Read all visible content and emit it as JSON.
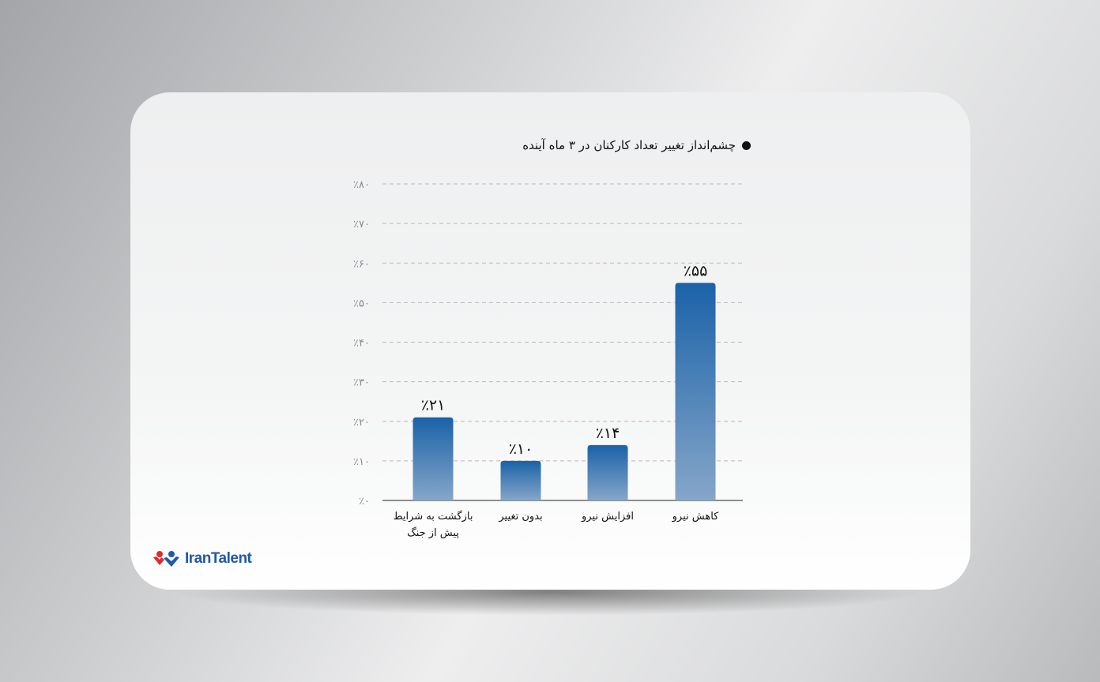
{
  "chart_data": {
    "type": "bar",
    "title": "چشم‌انداز تغییر تعداد کارکنان در ۳ ماه آینده",
    "categories": [
      [
        "بازگشت به شرایط",
        "پیش از جنگ"
      ],
      [
        "بدون تغییر"
      ],
      [
        "افزایش نیرو"
      ],
      [
        "کاهش نیرو"
      ]
    ],
    "values": [
      21,
      10,
      14,
      55
    ],
    "value_labels": [
      "٪۲۱",
      "٪۱۰",
      "٪۱۴",
      "٪۵۵"
    ],
    "ylim": [
      0,
      80
    ],
    "yticks": [
      0,
      10,
      20,
      30,
      40,
      50,
      60,
      70,
      80
    ],
    "ytick_labels": [
      "٪۰",
      "٪۱۰",
      "٪۲۰",
      "٪۳۰",
      "٪۴۰",
      "٪۵۰",
      "٪۶۰",
      "٪۷۰",
      "٪۸۰"
    ],
    "grid": true,
    "bar_color_top": "#1a62a8",
    "bar_color_bottom": "#86a6c9"
  },
  "logo": {
    "text": "IranTalent"
  }
}
